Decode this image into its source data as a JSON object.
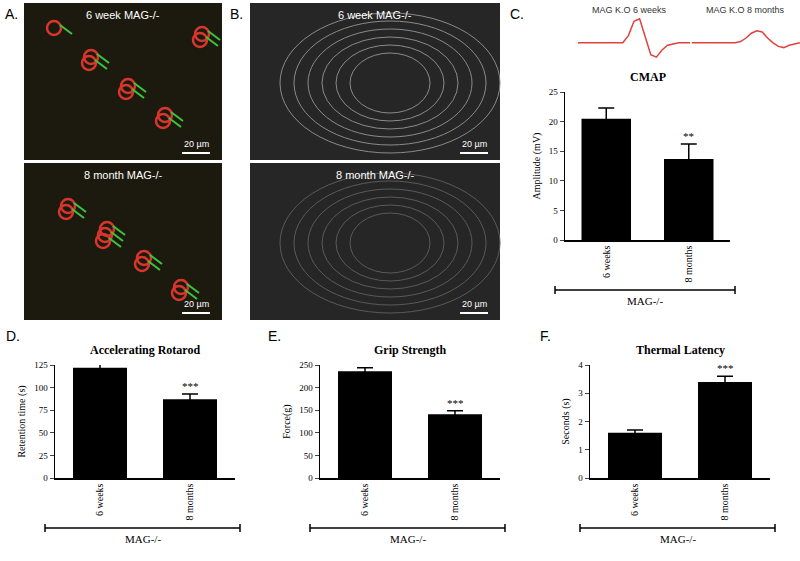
{
  "image_panels": [
    {
      "panel": "A.",
      "images": [
        {
          "label": "6 week MAG-/-",
          "scale_bar": "20 µm"
        },
        {
          "label": "8 month MAG-/-",
          "scale_bar": "20 µm"
        }
      ]
    },
    {
      "panel": "B.",
      "images": [
        {
          "label": "6 week MAG-/-",
          "scale_bar": "20 µm"
        },
        {
          "label": "8 month MAG-/-",
          "scale_bar": "20 µm"
        }
      ]
    }
  ],
  "chart_data": [
    {
      "type": "line",
      "panel": "C.",
      "title": "MAG K.O 6 weeks",
      "color": "#e0413f",
      "tick_labels": false,
      "x": [
        0,
        1,
        2,
        3,
        4,
        4.5,
        5,
        5.5,
        6,
        6.5,
        7,
        7.5,
        8,
        9,
        10
      ],
      "values": [
        0,
        0,
        0,
        0,
        0,
        3,
        9,
        10,
        2,
        -5,
        -6,
        -3,
        -1,
        0,
        0
      ],
      "xlim": [
        0,
        10
      ],
      "ylim": [
        -8,
        12
      ]
    },
    {
      "type": "line",
      "title": "MAG K.O 8 months",
      "color": "#e0413f",
      "tick_labels": false,
      "x": [
        0,
        1,
        2,
        3,
        4,
        4.5,
        5,
        5.5,
        6,
        6.5,
        7,
        7.5,
        8,
        8.5,
        9,
        10
      ],
      "values": [
        0,
        0,
        0,
        0,
        0,
        0.5,
        2,
        4,
        5,
        4.5,
        2,
        0,
        -1.5,
        -2,
        -1,
        0
      ],
      "xlim": [
        0,
        10
      ],
      "ylim": [
        -8,
        12
      ]
    },
    {
      "type": "bar",
      "title": "CMAP",
      "ylabel": "Amplitude (mV)",
      "xlabel": "MAG-/-",
      "categories": [
        "6 weeks",
        "8 months"
      ],
      "values": [
        20.5,
        13.7
      ],
      "errors": [
        1.8,
        2.5
      ],
      "color": "#000000",
      "ylim": [
        0,
        25
      ],
      "yticks": [
        0,
        5,
        10,
        15,
        20,
        25
      ],
      "grid": false,
      "annotations": [
        {
          "text": "**",
          "category": "8 months"
        }
      ]
    },
    {
      "type": "bar",
      "panel": "D.",
      "title": "Accelerating Rotarod",
      "ylabel": "Retention time (s)",
      "xlabel": "MAG-/-",
      "categories": [
        "6 weeks",
        "8 months"
      ],
      "values": [
        122,
        87
      ],
      "errors": [
        5,
        6
      ],
      "color": "#000000",
      "ylim": [
        0,
        125
      ],
      "yticks": [
        0,
        25,
        50,
        75,
        100,
        125
      ],
      "grid": false,
      "annotations": [
        {
          "text": "***",
          "category": "8 months"
        }
      ]
    },
    {
      "type": "bar",
      "panel": "E.",
      "title": "Grip Strength",
      "ylabel": "Force(g)",
      "xlabel": "MAG-/-",
      "categories": [
        "6 weeks",
        "8 months"
      ],
      "values": [
        236,
        141
      ],
      "errors": [
        8,
        8
      ],
      "color": "#000000",
      "ylim": [
        0,
        250
      ],
      "yticks": [
        0,
        50,
        100,
        150,
        200,
        250
      ],
      "grid": false,
      "annotations": [
        {
          "text": "***",
          "category": "8 months"
        }
      ]
    },
    {
      "type": "bar",
      "panel": "F.",
      "title": "Thermal Latency",
      "ylabel": "Seconds (s)",
      "xlabel": "MAG-/-",
      "categories": [
        "6 weeks",
        "8 months"
      ],
      "values": [
        1.6,
        3.4
      ],
      "errors": [
        0.1,
        0.2
      ],
      "color": "#000000",
      "ylim": [
        0,
        4
      ],
      "yticks": [
        0,
        1,
        2,
        3,
        4
      ],
      "grid": false,
      "annotations": [
        {
          "text": "***",
          "category": "8 months"
        }
      ]
    }
  ]
}
